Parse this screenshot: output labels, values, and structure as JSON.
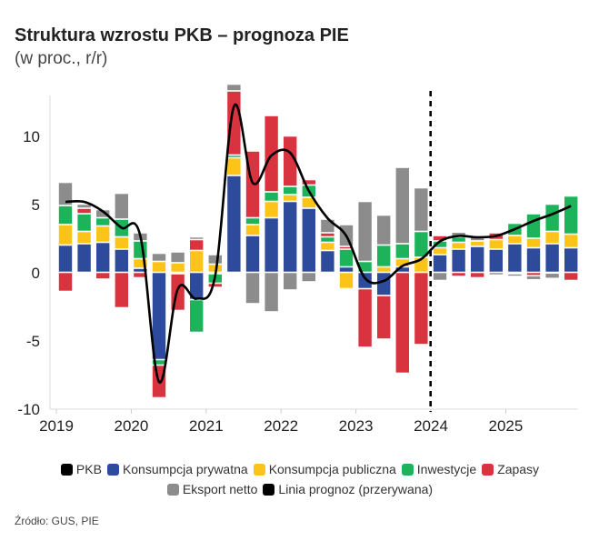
{
  "title": "Struktura wzrostu PKB – prognoza PIE",
  "subtitle": "(w proc., r/r)",
  "source": "Źródło: GUS, PIE",
  "chart_data": {
    "type": "bar",
    "stacked": true,
    "x_tick_labels": [
      "2019",
      "2020",
      "2021",
      "2022",
      "2023",
      "2024",
      "2025"
    ],
    "y_ticks": [
      -10,
      -5,
      0,
      5,
      10
    ],
    "ylim": [
      -10,
      13
    ],
    "grid": false,
    "legend_position": "bottom",
    "forecast_line_at": "2023Q4/2024Q1",
    "categories": [
      "2019Q1",
      "2019Q2",
      "2019Q3",
      "2019Q4",
      "2020Q1",
      "2020Q2",
      "2020Q3",
      "2020Q4",
      "2021Q1",
      "2021Q2",
      "2021Q3",
      "2021Q4",
      "2022Q1",
      "2022Q2",
      "2022Q3",
      "2022Q4",
      "2023Q1",
      "2023Q2",
      "2023Q3",
      "2023Q4",
      "2024Q1",
      "2024Q2",
      "2024Q3",
      "2024Q4",
      "2025Q1",
      "2025Q2",
      "2025Q3",
      "2025Q4"
    ],
    "series": [
      {
        "name": "Konsumpcja prywatna",
        "color": "#2e4a9a",
        "values": [
          2.0,
          2.1,
          2.2,
          1.7,
          0.3,
          -6.4,
          -0.1,
          -2.0,
          -0.1,
          7.1,
          2.7,
          4.0,
          5.2,
          4.7,
          1.6,
          0.4,
          -1.2,
          -1.7,
          0.4,
          0.0,
          1.3,
          1.7,
          1.9,
          1.7,
          2.1,
          1.8,
          2.1,
          1.8
        ]
      },
      {
        "name": "Konsumpcja publiczna",
        "color": "#fcc419",
        "values": [
          1.5,
          0.9,
          1.2,
          0.9,
          0.7,
          0.8,
          0.7,
          1.6,
          0.6,
          1.3,
          0.8,
          1.2,
          0.5,
          0.8,
          0.6,
          -1.2,
          0.0,
          0.4,
          0.6,
          1.1,
          0.5,
          0.5,
          0.4,
          0.7,
          0.6,
          0.7,
          0.9,
          1.0
        ]
      },
      {
        "name": "Inwestycje",
        "color": "#1db35a",
        "values": [
          1.4,
          1.3,
          0.6,
          1.3,
          1.3,
          -0.4,
          0.0,
          -2.4,
          -0.7,
          0.2,
          0.5,
          0.7,
          0.6,
          0.9,
          0.4,
          1.3,
          0.8,
          1.6,
          1.1,
          1.9,
          0.5,
          0.4,
          0.0,
          0.0,
          0.9,
          1.8,
          2.0,
          2.8
        ]
      },
      {
        "name": "Zapasy",
        "color": "#d9333f",
        "values": [
          -1.4,
          0.4,
          -0.5,
          -2.6,
          -0.4,
          -2.4,
          -2.7,
          0.8,
          -0.3,
          4.7,
          4.9,
          5.6,
          3.7,
          0.4,
          0.3,
          0.2,
          -4.3,
          -3.2,
          -7.4,
          -5.3,
          0.4,
          -0.3,
          -0.4,
          0.5,
          -0.1,
          -0.25,
          -0.05,
          -0.6
        ]
      },
      {
        "name": "Eksport netto",
        "color": "#8c8c8c",
        "values": [
          1.7,
          0.3,
          0.6,
          1.9,
          0.6,
          0.6,
          0.8,
          0.2,
          0.7,
          0.5,
          -2.3,
          -2.9,
          -1.3,
          -0.7,
          1.0,
          1.6,
          4.4,
          2.2,
          5.6,
          3.2,
          -0.6,
          0.35,
          0.4,
          -0.2,
          -0.2,
          -0.3,
          -0.4,
          -0.1
        ]
      }
    ],
    "line": {
      "name": "PKB",
      "color": "#000000",
      "values": [
        5.2,
        5.2,
        4.5,
        3.3,
        2.7,
        -8.0,
        -1.2,
        -1.9,
        -0.2,
        12.2,
        6.6,
        8.6,
        8.8,
        6.0,
        4.0,
        2.7,
        -0.4,
        -0.6,
        0.5,
        1.0,
        2.3,
        2.7,
        2.6,
        2.7,
        3.2,
        3.8,
        4.3,
        4.9
      ]
    },
    "legend": [
      {
        "label": "PKB",
        "color": "#000000"
      },
      {
        "label": "Konsumpcja prywatna",
        "color": "#2e4a9a"
      },
      {
        "label": "Konsumpcja publiczna",
        "color": "#fcc419"
      },
      {
        "label": "Inwestycje",
        "color": "#1db35a"
      },
      {
        "label": "Zapasy",
        "color": "#d9333f"
      },
      {
        "label": "Eksport netto",
        "color": "#8c8c8c"
      },
      {
        "label": "Linia prognoz (przerywana)",
        "color": "#000000"
      }
    ]
  }
}
